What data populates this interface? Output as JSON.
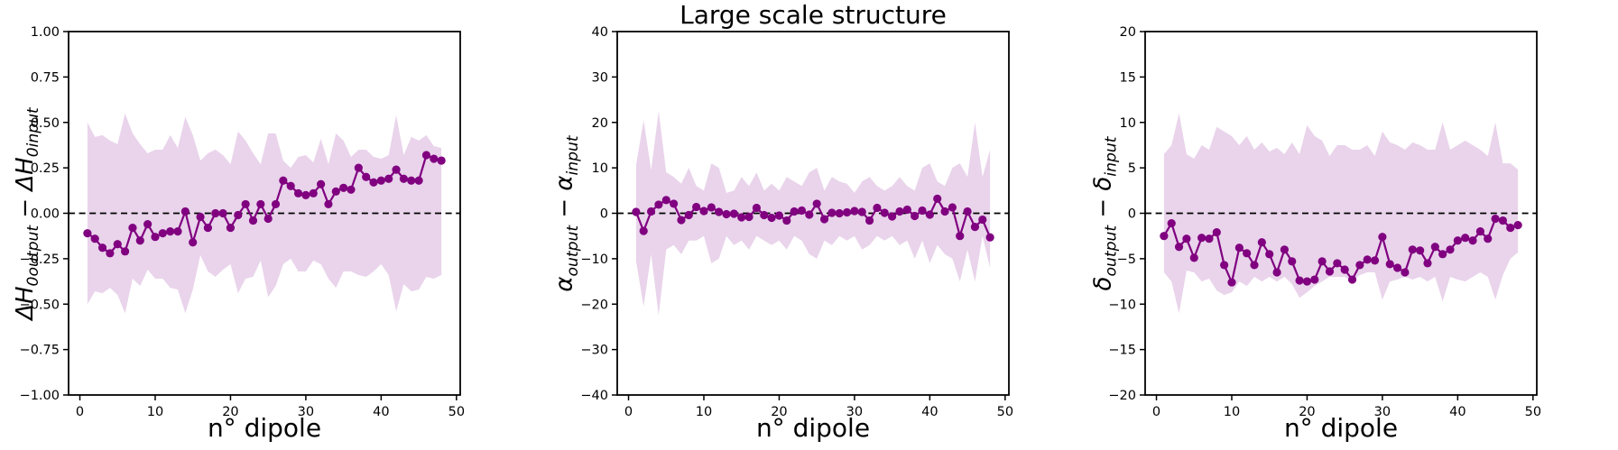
{
  "figure": {
    "title": "Large scale structure",
    "background_color": "#ffffff",
    "line_color": "#800080",
    "band_color": "#e9d4eb",
    "zero_line_color": "#000000",
    "text_color": "#000000"
  },
  "chart_data": [
    {
      "type": "line",
      "title": "",
      "xlabel": "n° dipole",
      "ylabel_parts": [
        {
          "t": "ΔH"
        },
        {
          "sub": "0output"
        },
        {
          "t": " − "
        },
        {
          "t": "ΔH"
        },
        {
          "sub": "0input"
        }
      ],
      "grid": false,
      "legend": null,
      "xlim": [
        -1.5,
        50.5
      ],
      "ylim": [
        -1.0,
        1.0
      ],
      "zero_line": 0,
      "xticks": [
        0,
        10,
        20,
        30,
        40,
        50
      ],
      "xtick_labels": [
        "0",
        "10",
        "20",
        "30",
        "40",
        "50"
      ],
      "ytick_values": [
        1.0,
        0.75,
        0.5,
        0.25,
        0.0,
        -0.25,
        -0.5,
        -0.75,
        -1.0
      ],
      "ytick_labels": [
        "1.00",
        "0.75",
        "0.50",
        "0.25",
        "0.00",
        "−0.25",
        "−0.50",
        "−0.75",
        "−1.00"
      ],
      "x": [
        1,
        2,
        3,
        4,
        5,
        6,
        7,
        8,
        9,
        10,
        11,
        12,
        13,
        14,
        15,
        16,
        17,
        18,
        19,
        20,
        21,
        22,
        23,
        24,
        25,
        26,
        27,
        28,
        29,
        30,
        31,
        32,
        33,
        34,
        35,
        36,
        37,
        38,
        39,
        40,
        41,
        42,
        43,
        44,
        45,
        46,
        47,
        48
      ],
      "y": [
        -0.11,
        -0.14,
        -0.19,
        -0.22,
        -0.17,
        -0.21,
        -0.08,
        -0.15,
        -0.06,
        -0.13,
        -0.11,
        -0.1,
        -0.1,
        0.01,
        -0.16,
        -0.02,
        -0.08,
        0.0,
        0.0,
        -0.08,
        -0.01,
        0.05,
        -0.04,
        0.05,
        -0.03,
        0.05,
        0.18,
        0.15,
        0.11,
        0.1,
        0.11,
        0.16,
        0.05,
        0.12,
        0.14,
        0.13,
        0.25,
        0.2,
        0.17,
        0.18,
        0.19,
        0.24,
        0.19,
        0.18,
        0.18,
        0.32,
        0.3,
        0.29
      ],
      "band_upper": [
        0.5,
        0.42,
        0.43,
        0.4,
        0.38,
        0.55,
        0.44,
        0.38,
        0.33,
        0.35,
        0.35,
        0.43,
        0.36,
        0.53,
        0.43,
        0.29,
        0.33,
        0.35,
        0.32,
        0.27,
        0.45,
        0.4,
        0.33,
        0.27,
        0.44,
        0.44,
        0.29,
        0.25,
        0.31,
        0.32,
        0.28,
        0.41,
        0.27,
        0.44,
        0.4,
        0.31,
        0.35,
        0.35,
        0.31,
        0.3,
        0.32,
        0.54,
        0.32,
        0.42,
        0.4,
        0.43,
        0.37,
        0.36
      ],
      "band_lower": [
        -0.5,
        -0.43,
        -0.44,
        -0.41,
        -0.45,
        -0.55,
        -0.36,
        -0.4,
        -0.31,
        -0.36,
        -0.36,
        -0.41,
        -0.42,
        -0.55,
        -0.42,
        -0.23,
        -0.32,
        -0.35,
        -0.31,
        -0.28,
        -0.44,
        -0.36,
        -0.35,
        -0.26,
        -0.46,
        -0.4,
        -0.28,
        -0.25,
        -0.32,
        -0.32,
        -0.26,
        -0.28,
        -0.36,
        -0.41,
        -0.32,
        -0.32,
        -0.34,
        -0.35,
        -0.32,
        -0.28,
        -0.34,
        -0.54,
        -0.39,
        -0.43,
        -0.42,
        -0.35,
        -0.36,
        -0.34
      ]
    },
    {
      "type": "line",
      "title": "Large scale structure",
      "xlabel": "n° dipole",
      "ylabel_parts": [
        {
          "t": "α"
        },
        {
          "sub": "output"
        },
        {
          "t": " − "
        },
        {
          "t": "α"
        },
        {
          "sub": "input"
        }
      ],
      "grid": false,
      "legend": null,
      "xlim": [
        -1.5,
        50.5
      ],
      "ylim": [
        -40,
        40
      ],
      "zero_line": 0,
      "xticks": [
        0,
        10,
        20,
        30,
        40,
        50
      ],
      "xtick_labels": [
        "0",
        "10",
        "20",
        "30",
        "40",
        "50"
      ],
      "ytick_values": [
        40,
        30,
        20,
        10,
        0,
        -10,
        -20,
        -30,
        -40
      ],
      "ytick_labels": [
        "40",
        "30",
        "20",
        "10",
        "0",
        "−10",
        "−20",
        "−30",
        "−40"
      ],
      "x": [
        1,
        2,
        3,
        4,
        5,
        6,
        7,
        8,
        9,
        10,
        11,
        12,
        13,
        14,
        15,
        16,
        17,
        18,
        19,
        20,
        21,
        22,
        23,
        24,
        25,
        26,
        27,
        28,
        29,
        30,
        31,
        32,
        33,
        34,
        35,
        36,
        37,
        38,
        39,
        40,
        41,
        42,
        43,
        44,
        45,
        46,
        47,
        48
      ],
      "y": [
        0.3,
        -3.9,
        0.4,
        1.9,
        2.9,
        2.1,
        -1.5,
        -0.4,
        1.4,
        0.5,
        1.3,
        0.3,
        -0.2,
        -0.1,
        -0.9,
        -0.8,
        1.2,
        -0.4,
        -1.0,
        -0.5,
        -1.6,
        0.4,
        0.6,
        -0.3,
        2.1,
        -1.3,
        0.1,
        0.0,
        0.2,
        0.5,
        0.3,
        -1.6,
        1.2,
        0.1,
        -0.7,
        0.4,
        0.8,
        -0.6,
        0.6,
        -0.3,
        3.2,
        0.4,
        1.3,
        -5.0,
        0.4,
        -3.0,
        -1.4,
        -5.3
      ],
      "band_upper": [
        10.5,
        20.5,
        9.5,
        22.5,
        9,
        8,
        6.5,
        10,
        6,
        5,
        11,
        10,
        4.5,
        5,
        8,
        6,
        9,
        5,
        6.5,
        5,
        8,
        7,
        6,
        9,
        10,
        5,
        8,
        7,
        6.5,
        4.5,
        7,
        8,
        6,
        5,
        6,
        8,
        6,
        5,
        10,
        11,
        7,
        6,
        10,
        11,
        8,
        20,
        8,
        14
      ],
      "band_lower": [
        -10.5,
        -20.5,
        -9,
        -22.5,
        -8,
        -7,
        -9,
        -6,
        -6,
        -5,
        -11,
        -10,
        -5,
        -7,
        -6,
        -8,
        -5,
        -6,
        -7,
        -6,
        -8,
        -5,
        -6,
        -9,
        -10,
        -6,
        -7,
        -5,
        -6,
        -5,
        -8,
        -7,
        -5,
        -6,
        -5,
        -7,
        -6,
        -10,
        -6,
        -11,
        -7,
        -9,
        -10,
        -15,
        -8,
        -15,
        -5,
        -12
      ]
    },
    {
      "type": "line",
      "title": "",
      "xlabel": "n° dipole",
      "ylabel_parts": [
        {
          "t": "δ"
        },
        {
          "sub": "output"
        },
        {
          "t": " − "
        },
        {
          "t": "δ"
        },
        {
          "sub": "input"
        }
      ],
      "grid": false,
      "legend": null,
      "xlim": [
        -1.5,
        50.5
      ],
      "ylim": [
        -20,
        20
      ],
      "zero_line": 0,
      "xticks": [
        0,
        10,
        20,
        30,
        40,
        50
      ],
      "xtick_labels": [
        "0",
        "10",
        "20",
        "30",
        "40",
        "50"
      ],
      "ytick_values": [
        20,
        15,
        10,
        5,
        0,
        -5,
        -10,
        -15,
        -20
      ],
      "ytick_labels": [
        "20",
        "15",
        "10",
        "5",
        "0",
        "−5",
        "−10",
        "−15",
        "−20"
      ],
      "x": [
        1,
        2,
        3,
        4,
        5,
        6,
        7,
        8,
        9,
        10,
        11,
        12,
        13,
        14,
        15,
        16,
        17,
        18,
        19,
        20,
        21,
        22,
        23,
        24,
        25,
        26,
        27,
        28,
        29,
        30,
        31,
        32,
        33,
        34,
        35,
        36,
        37,
        38,
        39,
        40,
        41,
        42,
        43,
        44,
        45,
        46,
        47,
        48
      ],
      "y": [
        -2.5,
        -1.1,
        -3.7,
        -2.8,
        -4.9,
        -2.7,
        -2.8,
        -2.1,
        -5.7,
        -7.6,
        -3.8,
        -4.4,
        -5.7,
        -3.2,
        -4.5,
        -6.5,
        -4.0,
        -5.3,
        -7.4,
        -7.5,
        -7.3,
        -5.3,
        -6.4,
        -5.5,
        -6.2,
        -7.3,
        -5.7,
        -5.1,
        -5.2,
        -2.6,
        -5.6,
        -6.0,
        -6.5,
        -4.0,
        -4.1,
        -5.5,
        -3.7,
        -4.5,
        -4.0,
        -3.0,
        -2.7,
        -3.0,
        -2.0,
        -2.8,
        -0.6,
        -0.8,
        -1.6,
        -1.3
      ],
      "band_upper": [
        6.5,
        7.5,
        11,
        6.5,
        6,
        7.5,
        7,
        9.5,
        9,
        8.5,
        7.5,
        8.5,
        7,
        7.8,
        6.8,
        7.2,
        6.5,
        7.8,
        6.5,
        9.7,
        8.5,
        8,
        6.3,
        7.5,
        7.5,
        7,
        7,
        7.5,
        6.3,
        9,
        7.8,
        7.5,
        7,
        7.8,
        7.5,
        7,
        7,
        10,
        7,
        7.5,
        8,
        7.5,
        7,
        6.3,
        10,
        5.5,
        5.5,
        4.8
      ],
      "band_lower": [
        -6.5,
        -7.5,
        -11,
        -6.3,
        -6.5,
        -7.5,
        -7.2,
        -8.5,
        -9,
        -8.7,
        -7.5,
        -8,
        -7,
        -7.5,
        -7,
        -7.5,
        -7,
        -7.8,
        -9.3,
        -8.7,
        -8,
        -7.5,
        -7,
        -7,
        -7,
        -7.5,
        -6.8,
        -6.5,
        -6.5,
        -9.5,
        -7.5,
        -7.3,
        -7,
        -7.3,
        -7,
        -7.5,
        -7,
        -9.7,
        -7,
        -7.3,
        -7.5,
        -7,
        -6.5,
        -7,
        -9.5,
        -6.8,
        -5,
        -4.3
      ]
    }
  ]
}
